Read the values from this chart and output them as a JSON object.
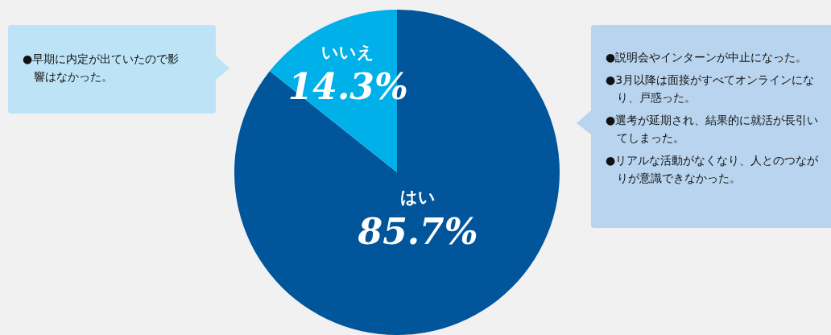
{
  "chart_data": {
    "type": "pie",
    "categories": [
      "はい",
      "いいえ"
    ],
    "values": [
      85.7,
      14.3
    ],
    "colors": [
      "#00559b",
      "#00b0e8"
    ],
    "value_labels": [
      "85.7%",
      "14.3%"
    ],
    "annotations": [
      "●早期に内定が出ていたので影響はなかった。",
      "●説明会やインターンが中止になった。",
      "●3月以降は面接がすべてオンラインになり、戸惑った。",
      "●選考が延期され、結果的に就活が長引いてしまった。",
      "●リアルな活動がなくなり、人とのつながりが意識できなかった。"
    ]
  }
}
